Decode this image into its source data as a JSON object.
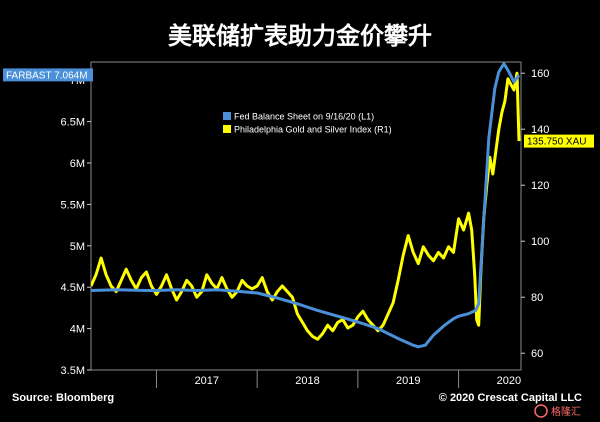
{
  "title": "美联储扩表助力金价攀升",
  "source": "Source: Bloomberg",
  "copyright": "© 2020 Crescat Capital LLC",
  "watermark": "格隆汇",
  "chart_data": {
    "type": "line",
    "title": "美联储扩表助力金价攀升",
    "x_ticks": [
      "2017",
      "2018",
      "2019",
      "2020"
    ],
    "left_axis": {
      "ticks": [
        "3.5M",
        "4M",
        "4.5M",
        "5M",
        "5.5M",
        "6M",
        "6.5M",
        "7M"
      ],
      "values": [
        3.5,
        4.0,
        4.5,
        5.0,
        5.5,
        6.0,
        6.5,
        7.0
      ],
      "ylim": [
        3.5,
        7.22
      ],
      "unit": "M"
    },
    "right_axis": {
      "ticks": [
        "60",
        "80",
        "100",
        "120",
        "140",
        "160"
      ],
      "values": [
        60,
        80,
        100,
        120,
        140,
        160
      ],
      "ylim": [
        54,
        164
      ]
    },
    "xlim": [
      2016.35,
      2020.62
    ],
    "legend": {
      "placement": "top-center"
    },
    "callouts": {
      "left": {
        "text": "FARBAST 7.064M",
        "value": 7.064,
        "color": "#4a90d9"
      },
      "right": {
        "text": "135.750 XAU",
        "value": 135.75,
        "color": "#ffff00"
      }
    },
    "series": [
      {
        "name": "Fed Balance Sheet on 9/16/20 (L1)",
        "axis": "left",
        "color": "#4a90d9",
        "x": [
          2016.35,
          2016.6,
          2016.9,
          2017.0,
          2017.2,
          2017.4,
          2017.6,
          2017.8,
          2018.0,
          2018.2,
          2018.4,
          2018.6,
          2018.8,
          2019.0,
          2019.2,
          2019.4,
          2019.55,
          2019.6,
          2019.67,
          2019.75,
          2019.85,
          2019.95,
          2020.0,
          2020.1,
          2020.17,
          2020.2,
          2020.22,
          2020.25,
          2020.28,
          2020.3,
          2020.33,
          2020.36,
          2020.4,
          2020.45,
          2020.5,
          2020.55,
          2020.6
        ],
        "y": [
          4.46,
          4.47,
          4.46,
          4.46,
          4.47,
          4.46,
          4.47,
          4.45,
          4.43,
          4.37,
          4.3,
          4.22,
          4.15,
          4.08,
          4.0,
          3.88,
          3.8,
          3.78,
          3.8,
          3.92,
          4.03,
          4.12,
          4.15,
          4.18,
          4.22,
          4.3,
          4.7,
          5.3,
          5.9,
          6.3,
          6.6,
          6.9,
          7.1,
          7.2,
          7.1,
          6.98,
          7.06
        ]
      },
      {
        "name": "Philadelphia Gold and Silver Index (R1)",
        "axis": "right",
        "color": "#ffff00",
        "x": [
          2016.35,
          2016.4,
          2016.45,
          2016.5,
          2016.55,
          2016.6,
          2016.65,
          2016.7,
          2016.75,
          2016.8,
          2016.85,
          2016.9,
          2016.95,
          2017.0,
          2017.05,
          2017.1,
          2017.15,
          2017.2,
          2017.25,
          2017.3,
          2017.35,
          2017.4,
          2017.45,
          2017.5,
          2017.55,
          2017.6,
          2017.65,
          2017.7,
          2017.75,
          2017.8,
          2017.85,
          2017.9,
          2017.95,
          2018.0,
          2018.05,
          2018.1,
          2018.15,
          2018.2,
          2018.25,
          2018.3,
          2018.35,
          2018.4,
          2018.45,
          2018.5,
          2018.55,
          2018.6,
          2018.65,
          2018.7,
          2018.75,
          2018.8,
          2018.85,
          2018.9,
          2018.95,
          2019.0,
          2019.05,
          2019.1,
          2019.15,
          2019.2,
          2019.25,
          2019.3,
          2019.35,
          2019.4,
          2019.45,
          2019.5,
          2019.55,
          2019.6,
          2019.65,
          2019.7,
          2019.75,
          2019.8,
          2019.85,
          2019.9,
          2019.95,
          2020.0,
          2020.05,
          2020.1,
          2020.13,
          2020.16,
          2020.18,
          2020.2,
          2020.22,
          2020.25,
          2020.28,
          2020.31,
          2020.34,
          2020.37,
          2020.4,
          2020.43,
          2020.46,
          2020.49,
          2020.52,
          2020.55,
          2020.58,
          2020.6
        ],
        "y": [
          84,
          88,
          94,
          88,
          84,
          82,
          86,
          90,
          86,
          83,
          87,
          89,
          84,
          81,
          84,
          88,
          83,
          79,
          82,
          86,
          84,
          80,
          82,
          88,
          85,
          83,
          87,
          83,
          80,
          82,
          86,
          84,
          83,
          84,
          87,
          82,
          79,
          82,
          84,
          82,
          80,
          74,
          71,
          68,
          66,
          65,
          67,
          70,
          68,
          71,
          72,
          69,
          70,
          73,
          75,
          72,
          70,
          68,
          70,
          74,
          78,
          86,
          95,
          102,
          96,
          92,
          98,
          95,
          93,
          96,
          94,
          98,
          96,
          108,
          104,
          110,
          104,
          88,
          72,
          70,
          88,
          108,
          120,
          130,
          124,
          132,
          140,
          146,
          150,
          158,
          156,
          154,
          160,
          135.75
        ]
      }
    ]
  }
}
